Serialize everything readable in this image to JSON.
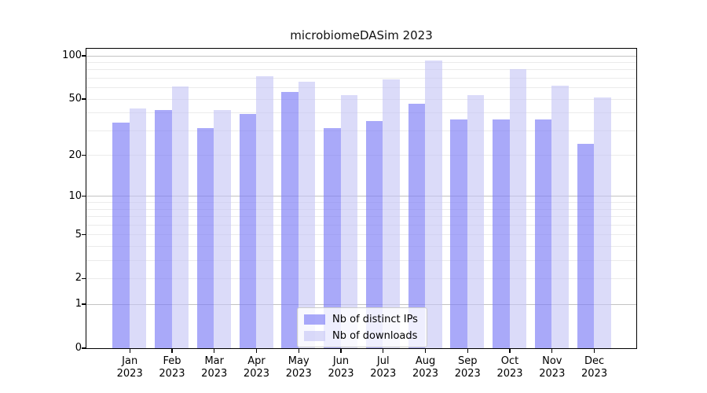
{
  "title": "microbiomeDASim 2023",
  "chart_data": {
    "type": "bar",
    "title": "microbiomeDASim 2023",
    "categories": [
      "Jan",
      "Feb",
      "Mar",
      "Apr",
      "May",
      "Jun",
      "Jul",
      "Aug",
      "Sep",
      "Oct",
      "Nov",
      "Dec"
    ],
    "year": "2023",
    "series": [
      {
        "name": "Nb of distinct IPs",
        "key": "distinct-ips",
        "color": "#aaaaf8",
        "fill": "rgba(124,124,246,0.66)",
        "values": [
          34,
          42,
          31,
          39,
          56,
          31,
          35,
          46,
          36,
          36,
          36,
          24
        ]
      },
      {
        "name": "Nb of downloads",
        "key": "downloads",
        "color": "#d9d9f8",
        "fill": "rgba(197,197,246,0.62)",
        "values": [
          43,
          61,
          42,
          72,
          66,
          53,
          68,
          92,
          53,
          80,
          62,
          51
        ]
      }
    ],
    "xlabel": "",
    "ylabel": "",
    "yscale": "log1p",
    "ylim": [
      0,
      112
    ],
    "yticks": [
      0,
      1,
      2,
      5,
      10,
      20,
      50,
      100
    ],
    "grid_major": [
      1,
      10,
      100
    ],
    "grid_minor": [
      2,
      3,
      4,
      5,
      6,
      7,
      8,
      9,
      20,
      30,
      40,
      50,
      60,
      70,
      80,
      90
    ],
    "grid": true,
    "legend_position": "lower center",
    "axis_color": "#000000",
    "grid_major_color": "#c3c3c3",
    "grid_minor_color": "#ebebeb",
    "background": "#ffffff"
  },
  "legend": {
    "items": [
      {
        "label": "Nb of distinct IPs"
      },
      {
        "label": "Nb of downloads"
      }
    ]
  }
}
